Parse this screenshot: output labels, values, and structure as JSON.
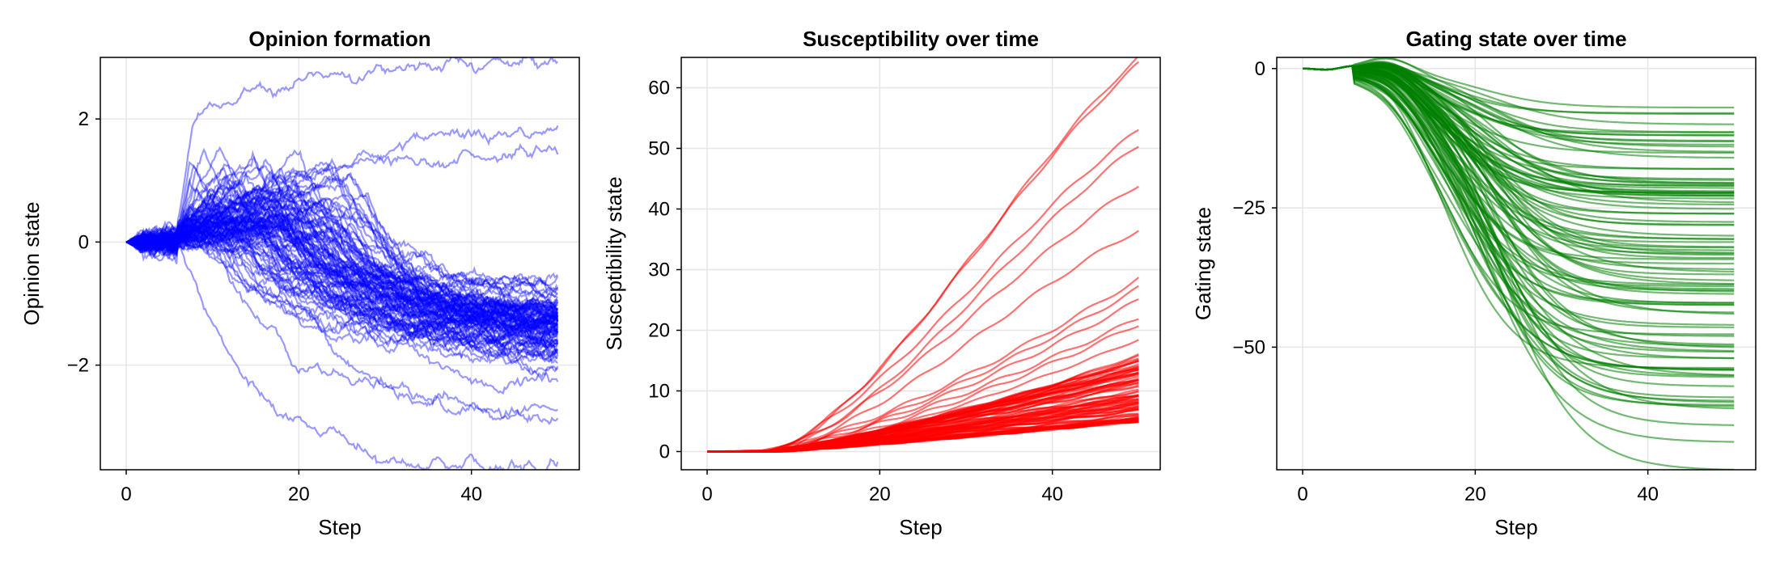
{
  "chart_data": [
    {
      "type": "line",
      "title": "Opinion formation",
      "xlabel": "Step",
      "ylabel": "Opinion state",
      "xlim": [
        -3,
        52.5
      ],
      "ylim": [
        -3.7,
        3.0
      ],
      "xticks": [
        0,
        20,
        40
      ],
      "yticks": [
        2,
        0,
        -2
      ],
      "ytick_labels": [
        "2",
        "0",
        "−2"
      ],
      "grid": true,
      "color": "#0000ff",
      "line_opacity": 0.4,
      "x": [
        0,
        50
      ],
      "series_count": 100,
      "representative_final_values": [
        2.95,
        1.8,
        1.45,
        -0.75,
        -0.9,
        -1.0,
        -1.1,
        -1.2,
        -1.3,
        -1.4,
        -1.5,
        -1.6,
        -1.75,
        -1.9,
        -2.1,
        -2.4,
        -2.7,
        -2.9,
        -3.7
      ]
    },
    {
      "type": "line",
      "title": "Susceptibility over time",
      "xlabel": "Step",
      "ylabel": "Susceptibility state",
      "xlim": [
        -3,
        52.5
      ],
      "ylim": [
        -3,
        65
      ],
      "xticks": [
        0,
        20,
        40
      ],
      "yticks": [
        0,
        10,
        20,
        30,
        40,
        50,
        60
      ],
      "ytick_labels": [
        "0",
        "10",
        "20",
        "30",
        "40",
        "50",
        "60"
      ],
      "grid": true,
      "color": "#ff0000",
      "line_opacity": 0.55,
      "x": [
        0,
        50
      ],
      "series_count": 100,
      "representative_final_values": [
        65,
        64,
        53,
        50.5,
        44,
        36.5,
        28.5,
        27,
        25,
        22,
        21,
        18.5,
        16,
        15,
        14,
        13,
        12,
        11,
        10,
        9,
        8,
        7,
        6,
        5
      ]
    },
    {
      "type": "line",
      "title": "Gating state over time",
      "xlabel": "Step",
      "ylabel": "Gating state",
      "xlim": [
        -3,
        52.5
      ],
      "ylim": [
        -72,
        2
      ],
      "xticks": [
        0,
        20,
        40
      ],
      "yticks": [
        0,
        -25,
        -50
      ],
      "ytick_labels": [
        "0",
        "−25",
        "−50"
      ],
      "grid": true,
      "color": "#008000",
      "line_opacity": 0.55,
      "x": [
        0,
        50
      ],
      "series_count": 100,
      "representative_final_values": [
        -7,
        -8,
        -10,
        -12,
        -14,
        -16,
        -18,
        -20,
        -22,
        -24,
        -26,
        -28,
        -30,
        -32,
        -34,
        -36,
        -38,
        -40,
        -42,
        -44,
        -46,
        -48,
        -50,
        -52,
        -55,
        -57,
        -59,
        -61,
        -64,
        -67,
        -72
      ]
    }
  ]
}
